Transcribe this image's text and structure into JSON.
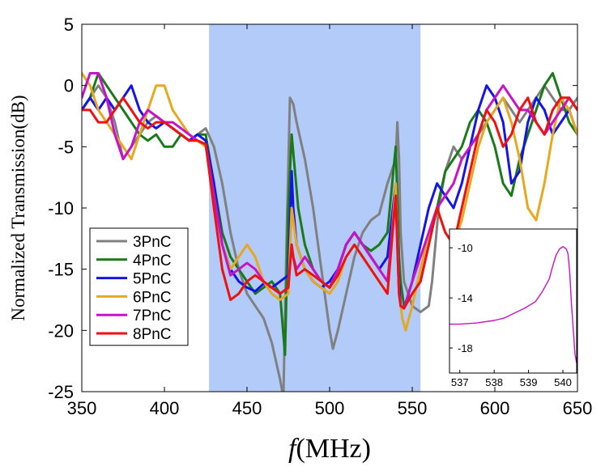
{
  "chart_data": [
    {
      "type": "line",
      "title": "",
      "xlabel_symbol": "f",
      "xlabel_unit": "(MHz)",
      "ylabel": "Normalized Transmission(dB)",
      "xlim": [
        350,
        650
      ],
      "ylim": [
        -25,
        5
      ],
      "xticks": [
        350,
        400,
        450,
        500,
        550,
        600,
        650
      ],
      "yticks": [
        5,
        0,
        -5,
        -10,
        -15,
        -20,
        -25
      ],
      "shaded_band": {
        "x_range": [
          427,
          555
        ],
        "color": "#b3cbf9"
      },
      "legend_position": "lower-left",
      "series": [
        {
          "name": "3PnC",
          "color": "#808080",
          "x": [
            350,
            355,
            360,
            365,
            370,
            375,
            380,
            385,
            390,
            395,
            400,
            405,
            410,
            415,
            420,
            425,
            430,
            435,
            440,
            445,
            450,
            455,
            460,
            465,
            470,
            472,
            474,
            476,
            478,
            480,
            485,
            490,
            495,
            500,
            502,
            505,
            510,
            515,
            520,
            525,
            530,
            535,
            540,
            541,
            542,
            543,
            545,
            550,
            555,
            560,
            562,
            564,
            566,
            570,
            575,
            580,
            585,
            590,
            595,
            600,
            605,
            610,
            615,
            620,
            625,
            630,
            635,
            640,
            645,
            650
          ],
          "y": [
            -2,
            -1,
            0,
            -1,
            -3,
            -6,
            -5,
            -4,
            -3,
            -2.5,
            -3,
            -3.5,
            -4,
            -4.5,
            -4,
            -3.5,
            -5,
            -8,
            -12,
            -15,
            -17,
            -18,
            -19,
            -21,
            -24,
            -25.5,
            -12,
            -1,
            -1.5,
            -3,
            -6,
            -10,
            -15,
            -20,
            -21.5,
            -20,
            -17,
            -14,
            -12,
            -11,
            -10.5,
            -8,
            -6,
            -3,
            -6,
            -12,
            -16,
            -18,
            -18.5,
            -18,
            -16,
            -13,
            -10,
            -7,
            -5,
            -6,
            -5,
            -4,
            -3,
            -2,
            -1,
            -2,
            -3,
            -2,
            -1,
            0,
            -1,
            -2,
            -2,
            -1
          ]
        },
        {
          "name": "4PnC",
          "color": "#1a7a1a",
          "x": [
            350,
            355,
            360,
            365,
            370,
            375,
            380,
            385,
            390,
            395,
            400,
            405,
            410,
            415,
            420,
            425,
            430,
            435,
            440,
            445,
            450,
            455,
            460,
            465,
            470,
            473,
            475,
            477,
            479,
            481,
            485,
            490,
            495,
            500,
            505,
            510,
            515,
            520,
            525,
            530,
            535,
            540,
            541,
            542,
            543,
            545,
            550,
            555,
            560,
            565,
            570,
            575,
            580,
            585,
            590,
            595,
            600,
            605,
            610,
            615,
            620,
            625,
            630,
            635,
            640,
            645,
            650
          ],
          "y": [
            -2,
            -1,
            1,
            0,
            -1,
            -2,
            -3,
            -4,
            -4.5,
            -4,
            -5,
            -5,
            -4,
            -4.5,
            -4,
            -4,
            -8,
            -12,
            -14,
            -15,
            -16,
            -17,
            -16.5,
            -16,
            -17,
            -22,
            -10,
            -4,
            -7,
            -10,
            -13,
            -15,
            -16,
            -16.5,
            -15,
            -13,
            -12,
            -13,
            -13.5,
            -13,
            -12,
            -5,
            -9,
            -14,
            -16,
            -18,
            -17,
            -16,
            -13,
            -10,
            -7,
            -6,
            -5,
            -3,
            -2,
            -3,
            -5,
            -8,
            -9,
            -6,
            -4,
            -2,
            0,
            1,
            -1,
            -3,
            -4
          ]
        },
        {
          "name": "5PnC",
          "color": "#1414e6",
          "x": [
            350,
            355,
            360,
            365,
            370,
            375,
            380,
            385,
            390,
            395,
            400,
            405,
            410,
            415,
            420,
            425,
            430,
            435,
            440,
            445,
            450,
            455,
            460,
            465,
            470,
            475,
            477,
            478,
            480,
            485,
            490,
            495,
            500,
            505,
            510,
            515,
            520,
            525,
            530,
            535,
            540,
            541,
            542,
            543,
            545,
            550,
            555,
            560,
            565,
            570,
            575,
            580,
            585,
            590,
            595,
            600,
            605,
            610,
            615,
            620,
            625,
            630,
            635,
            640,
            645,
            650
          ],
          "y": [
            -2,
            -1,
            -2,
            -1,
            -2,
            -1,
            0,
            -2,
            -3,
            -3.5,
            -3,
            -3.5,
            -4,
            -4.5,
            -4,
            -4.5,
            -8,
            -13,
            -15,
            -16,
            -16.5,
            -16.8,
            -16.2,
            -16.5,
            -16,
            -15.5,
            -7,
            -10,
            -13,
            -15,
            -16,
            -16.5,
            -16,
            -15,
            -13,
            -12,
            -13,
            -14,
            -15,
            -14,
            -8,
            -12,
            -16,
            -18,
            -18.2,
            -16,
            -13,
            -10,
            -8,
            -9,
            -10,
            -8,
            -5,
            -2,
            0,
            -1,
            -3,
            -8,
            -7,
            -3,
            -1,
            -2,
            -4,
            -3,
            -2,
            -4
          ]
        },
        {
          "name": "6PnC",
          "color": "#e6a820",
          "x": [
            350,
            355,
            360,
            365,
            370,
            375,
            380,
            385,
            390,
            395,
            400,
            405,
            410,
            415,
            420,
            425,
            430,
            435,
            440,
            445,
            450,
            455,
            460,
            465,
            470,
            475,
            477,
            478,
            480,
            485,
            490,
            495,
            500,
            505,
            510,
            515,
            520,
            525,
            530,
            535,
            540,
            542,
            544,
            546,
            548,
            550,
            555,
            560,
            565,
            570,
            575,
            580,
            585,
            590,
            595,
            600,
            605,
            610,
            615,
            620,
            625,
            630,
            635,
            640,
            645,
            650
          ],
          "y": [
            1,
            0,
            -2,
            -3,
            -4,
            -5,
            -6,
            -4,
            -2,
            0,
            0,
            -2,
            -3,
            -4,
            -4.5,
            -5,
            -9,
            -13,
            -15,
            -14,
            -13,
            -14,
            -16,
            -17,
            -17.5,
            -17,
            -10,
            -11,
            -13,
            -15,
            -16,
            -16.5,
            -17,
            -16,
            -14,
            -13,
            -14,
            -15,
            -16,
            -17,
            -8,
            -17,
            -19,
            -20,
            -19,
            -18,
            -15,
            -12,
            -10,
            -12,
            -13,
            -11,
            -8,
            -5,
            -3,
            -2,
            -1,
            -3,
            -6,
            -10,
            -11,
            -8,
            -4,
            -1,
            -2,
            -4
          ]
        },
        {
          "name": "7PnC",
          "color": "#c812c8",
          "x": [
            350,
            355,
            360,
            365,
            370,
            375,
            380,
            385,
            390,
            395,
            400,
            405,
            410,
            415,
            420,
            425,
            430,
            435,
            440,
            445,
            450,
            455,
            460,
            465,
            470,
            475,
            477,
            478,
            480,
            485,
            490,
            495,
            500,
            505,
            510,
            515,
            520,
            525,
            530,
            535,
            540,
            541,
            542,
            543,
            545,
            550,
            555,
            560,
            565,
            570,
            575,
            580,
            585,
            590,
            595,
            600,
            605,
            610,
            615,
            620,
            625,
            630,
            635,
            640,
            645,
            650
          ],
          "y": [
            -1,
            1,
            1,
            -1,
            -4,
            -6,
            -5,
            -3,
            -2,
            -2.5,
            -3,
            -3,
            -3.5,
            -4,
            -4.5,
            -4.8,
            -9,
            -13,
            -15.5,
            -15,
            -14.5,
            -15,
            -16,
            -16.5,
            -17,
            -16.5,
            -13,
            -14,
            -15,
            -14,
            -15,
            -16,
            -16.5,
            -15,
            -13,
            -12,
            -13,
            -14,
            -15,
            -16,
            -9,
            -13,
            -17,
            -18,
            -18.2,
            -16,
            -14,
            -12,
            -10,
            -9,
            -8,
            -6,
            -5,
            -4,
            -2,
            -1,
            0,
            -1,
            -2,
            -2,
            -3,
            -4,
            -3,
            -2,
            -1,
            -2
          ]
        },
        {
          "name": "8PnC",
          "color": "#ee1111",
          "x": [
            350,
            355,
            360,
            365,
            370,
            375,
            380,
            385,
            390,
            395,
            400,
            405,
            410,
            415,
            420,
            425,
            430,
            435,
            440,
            445,
            450,
            455,
            460,
            465,
            470,
            475,
            477,
            478,
            480,
            485,
            490,
            495,
            500,
            505,
            510,
            515,
            520,
            525,
            530,
            535,
            540,
            541,
            542,
            543,
            545,
            550,
            555,
            560,
            565,
            570,
            575,
            580,
            585,
            590,
            595,
            600,
            605,
            610,
            615,
            620,
            625,
            630,
            635,
            640,
            645,
            650
          ],
          "y": [
            -2,
            -2,
            -3,
            -3,
            -2,
            -1,
            -2,
            -3,
            -3.5,
            -3,
            -3,
            -3.5,
            -4,
            -4.5,
            -4.5,
            -4.8,
            -10,
            -15,
            -17.5,
            -17,
            -16,
            -15.5,
            -16,
            -16.5,
            -17,
            -16.5,
            -13,
            -14,
            -15.5,
            -15,
            -15.5,
            -16,
            -16.5,
            -15.5,
            -14,
            -13,
            -14,
            -15,
            -16,
            -17,
            -9,
            -13,
            -17,
            -18,
            -18.2,
            -17,
            -16,
            -13,
            -10,
            -12,
            -13,
            -10,
            -7,
            -4,
            -2,
            -3,
            -5,
            -4,
            -2,
            -1,
            -3,
            -4,
            -2,
            -1,
            -1,
            -2
          ]
        }
      ]
    },
    {
      "type": "line",
      "title": "",
      "position": "inset lower-right",
      "xlim": [
        536.7,
        540.4
      ],
      "ylim": [
        -20,
        -8.5
      ],
      "xticks": [
        537,
        538,
        539,
        540
      ],
      "yticks": [
        -10,
        -14,
        -18
      ],
      "series": [
        {
          "name": "7PnC inset",
          "color": "#c812c8",
          "x": [
            536.7,
            537.0,
            537.5,
            538.0,
            538.3,
            538.6,
            538.9,
            539.2,
            539.4,
            539.6,
            539.7,
            539.8,
            539.9,
            540.0,
            540.1,
            540.15,
            540.2,
            540.25,
            540.3,
            540.35,
            540.4
          ],
          "y": [
            -16.1,
            -16.1,
            -16.0,
            -15.8,
            -15.6,
            -15.2,
            -14.8,
            -14.3,
            -13.5,
            -12.5,
            -11.5,
            -10.6,
            -10.1,
            -9.9,
            -10.1,
            -10.5,
            -12,
            -14.5,
            -16.5,
            -18.5,
            -19.2
          ]
        }
      ]
    }
  ]
}
